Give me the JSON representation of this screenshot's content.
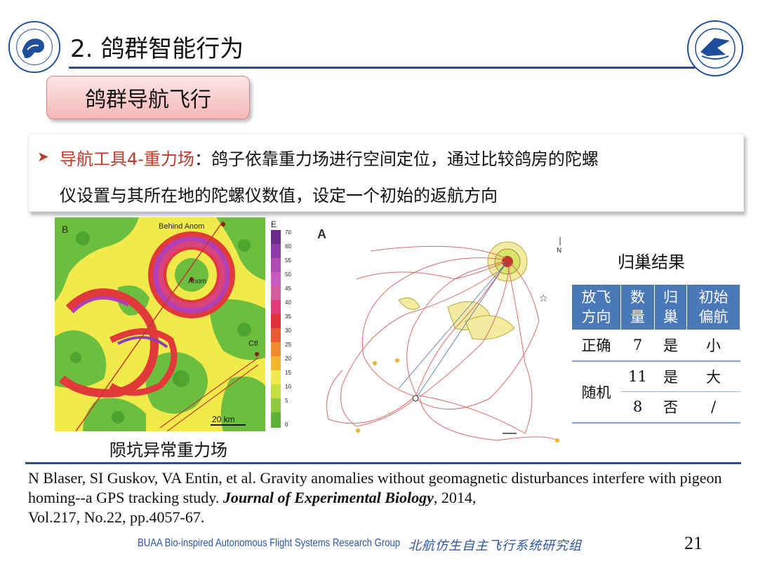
{
  "slide": {
    "title": "2. 鸽群智能行为",
    "subtitle": "鸽群导航飞行",
    "page_number": "21"
  },
  "bullet": {
    "highlight": "导航工具4-重力场",
    "line1_rest": "：鸽子依靠重力场进行空间定位，通过比较鸽房的陀螺",
    "line2": "仪设置与其所在地的陀螺仪数值，设定一个初始的返航方向"
  },
  "figure_left": {
    "panel_label": "B",
    "label_behind": "Behind Anom",
    "label_anom": "Anom",
    "label_ctl": "Ctl",
    "scale_bar": "20 km",
    "colorbar_title": "E",
    "colorbar_ticks": [
      "70",
      "60",
      "55",
      "50",
      "45",
      "40",
      "35",
      "30",
      "25",
      "20",
      "15",
      "10",
      "5",
      "0"
    ],
    "caption": "陨坑异常重力场"
  },
  "figure_right": {
    "panel_label": "A",
    "north_label": "N"
  },
  "results": {
    "title": "归巢结果",
    "headers": [
      "放飞方向",
      "数量",
      "归巢",
      "初始偏航"
    ],
    "header_lines": [
      [
        "放飞",
        "方向"
      ],
      [
        "数",
        "量"
      ],
      [
        "归",
        "巢"
      ],
      [
        "初始",
        "偏航"
      ]
    ],
    "rows": [
      {
        "direction": "正确",
        "count": "7",
        "homing": "是",
        "deviation": "小"
      },
      {
        "direction": "随机",
        "count": "11",
        "homing": "是",
        "deviation": "大"
      },
      {
        "direction": "",
        "count": "8",
        "homing": "否",
        "deviation": "/"
      }
    ]
  },
  "reference": {
    "authors_title": "N Blaser, SI Guskov, VA Entin, et al. Gravity anomalies without geomagnetic disturbances interfere with pigeon homing--a GPS tracking study. ",
    "journal": "Journal of Experimental Biology",
    "after_journal": ", 2014,",
    "volume": "Vol.217, No.22, pp.4057-67."
  },
  "footer": {
    "group_en": "BUAA Bio-inspired Autonomous Flight Systems Research Group",
    "group_cn": "北航仿生自主飞行系统研究组"
  },
  "colors": {
    "accent_blue": "#2d4f86",
    "table_header": "#4a78b9",
    "highlight_red": "#c0392b",
    "subtitle_fill": "#f6b7b7"
  }
}
